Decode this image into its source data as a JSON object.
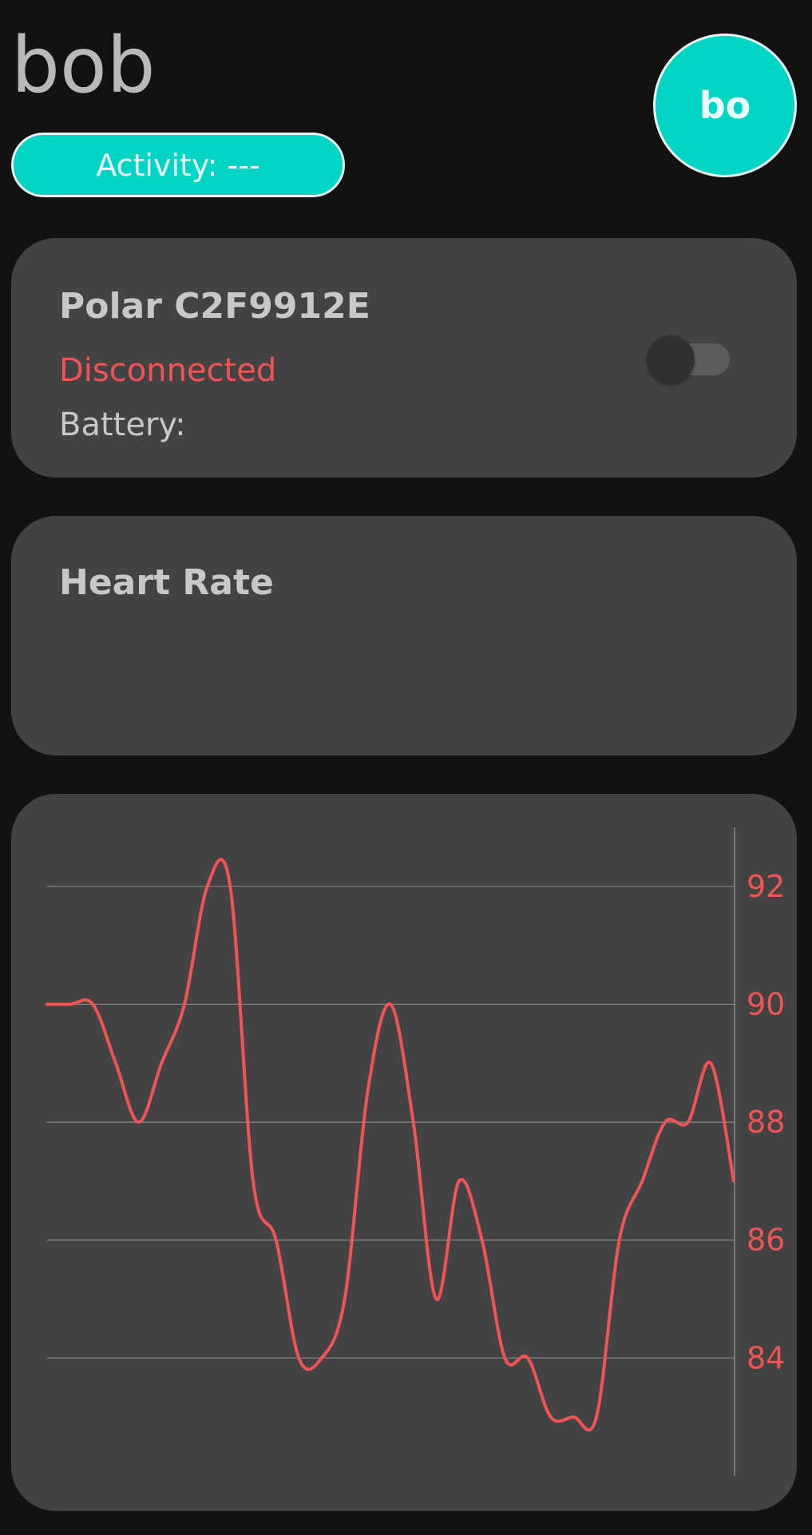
{
  "header": {
    "user_name": "bob",
    "activity_label": "Activity: ---",
    "avatar_initials": "bo"
  },
  "device_card": {
    "device_name": "Polar C2F9912E",
    "status": "Disconnected",
    "battery_label": "Battery:",
    "connection_toggle_on": false
  },
  "heart_rate_card": {
    "title": "Heart Rate"
  },
  "colors": {
    "background": "#121212",
    "card": "#434343",
    "accent": "#00d5c3",
    "error": "#f05454"
  },
  "chart_data": {
    "type": "line",
    "title": "",
    "xlabel": "",
    "ylabel": "",
    "y_axis_position": "right",
    "ylim": [
      82.0,
      93.0
    ],
    "y_ticks": [
      84,
      86,
      88,
      90,
      92
    ],
    "grid": true,
    "series": [
      {
        "color": "#f05454",
        "values": [
          90,
          90,
          90,
          89,
          88,
          89,
          90,
          92,
          92,
          87,
          86,
          84,
          84,
          85,
          88.5,
          90,
          88,
          85,
          87,
          86,
          84,
          84,
          83,
          83,
          83,
          86,
          87,
          88,
          88,
          89,
          87
        ]
      }
    ]
  }
}
